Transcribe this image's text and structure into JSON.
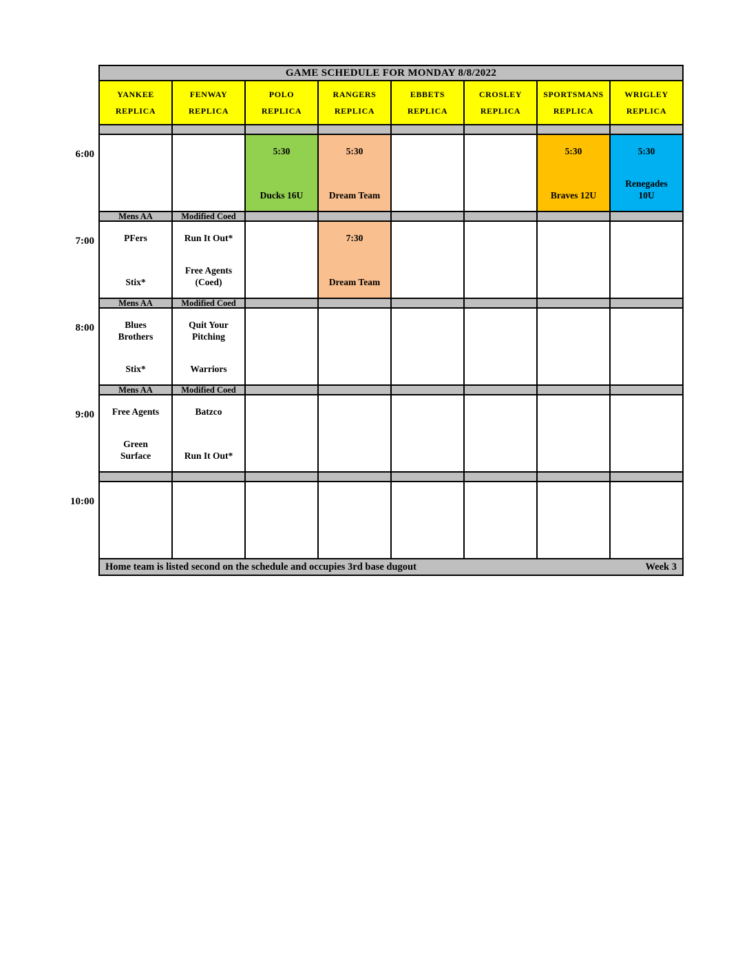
{
  "title": "GAME SCHEDULE FOR MONDAY 8/8/2022",
  "colors": {
    "header_fill": "#ffff00",
    "bar_fill": "#bfbfbf",
    "green": "#92D050",
    "peach": "#FABF8F",
    "gold": "#FFC000",
    "blue": "#00B0F0"
  },
  "columns": [
    {
      "line1": "YANKEE",
      "line2": "REPLICA"
    },
    {
      "line1": "FENWAY",
      "line2": "REPLICA"
    },
    {
      "line1": "POLO",
      "line2": "REPLICA"
    },
    {
      "line1": "RANGERS",
      "line2": "REPLICA"
    },
    {
      "line1": "EBBETS",
      "line2": "REPLICA"
    },
    {
      "line1": "CROSLEY",
      "line2": "REPLICA"
    },
    {
      "line1": "SPORTSMANS",
      "line2": "REPLICA"
    },
    {
      "line1": "WRIGLEY",
      "line2": "REPLICA"
    }
  ],
  "times": [
    "6:00",
    "7:00",
    "8:00",
    "9:00",
    "10:00"
  ],
  "segments": [
    {
      "type": "strip",
      "cells": [
        "",
        "",
        "",
        "",
        "",
        "",
        "",
        ""
      ]
    },
    {
      "type": "row",
      "time": "6:00",
      "cells": [
        {},
        {},
        {
          "top": "5:30",
          "bottom": "Ducks 16U",
          "bg": "#92D050"
        },
        {
          "top": "5:30",
          "bottom": "Dream Team",
          "bg": "#FABF8F"
        },
        {},
        {},
        {
          "top": "5:30",
          "bottom": "Braves 12U",
          "bg": "#FFC000"
        },
        {
          "top": "5:30",
          "bottom": "Renegades\n10U",
          "bg": "#00B0F0"
        }
      ]
    },
    {
      "type": "strip",
      "cells": [
        "Mens AA",
        "Modified Coed",
        "",
        "",
        "",
        "",
        "",
        ""
      ]
    },
    {
      "type": "row",
      "time": "7:00",
      "cells": [
        {
          "top": "PFers",
          "bottom": "Stix*"
        },
        {
          "top": "Run It Out*",
          "bottom": "Free Agents\n(Coed)"
        },
        {},
        {
          "top": "7:30",
          "bottom": "Dream Team",
          "bg": "#FABF8F"
        },
        {},
        {},
        {},
        {}
      ]
    },
    {
      "type": "strip",
      "cells": [
        "Mens AA",
        "Modified Coed",
        "",
        "",
        "",
        "",
        "",
        ""
      ]
    },
    {
      "type": "row",
      "time": "8:00",
      "cells": [
        {
          "top": "Blues\nBrothers",
          "bottom": "Stix*"
        },
        {
          "top": "Quit Your\nPitching",
          "bottom": "Warriors"
        },
        {},
        {},
        {},
        {},
        {},
        {}
      ]
    },
    {
      "type": "strip",
      "cells": [
        "Mens AA",
        "Modified Coed",
        "",
        "",
        "",
        "",
        "",
        ""
      ]
    },
    {
      "type": "row",
      "time": "9:00",
      "cells": [
        {
          "top": "Free Agents",
          "bottom": "Green\nSurface"
        },
        {
          "top": "Batzco",
          "bottom": "Run It Out*"
        },
        {},
        {},
        {},
        {},
        {},
        {}
      ]
    },
    {
      "type": "strip",
      "cells": [
        "",
        "",
        "",
        "",
        "",
        "",
        "",
        ""
      ]
    },
    {
      "type": "row",
      "time": "10:00",
      "cells": [
        {},
        {},
        {},
        {},
        {},
        {},
        {},
        {}
      ]
    }
  ],
  "footer": {
    "note": "Home team is listed second on the schedule and occupies 3rd base dugout",
    "week": "Week 3"
  }
}
